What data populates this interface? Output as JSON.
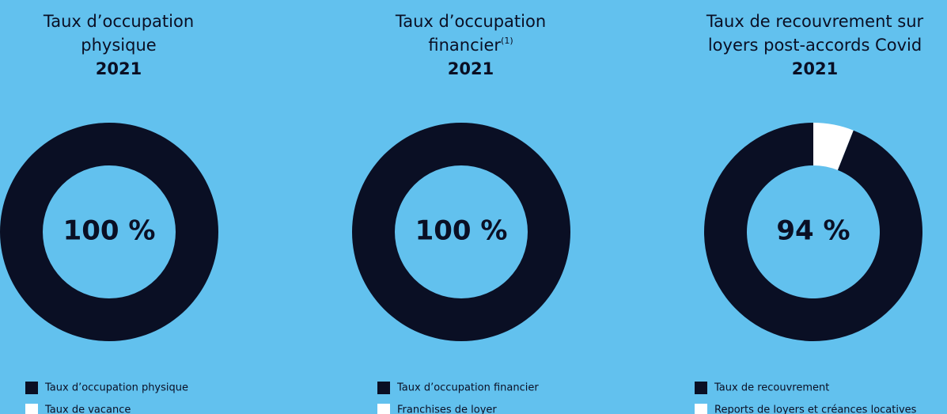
{
  "chart_data": [
    {
      "type": "pie",
      "title": [
        "Taux d’occupation",
        "physique"
      ],
      "year": "2021",
      "categories": [
        "Taux d’occupation physique",
        "Taux de vacance"
      ],
      "values": [
        100,
        0
      ],
      "value_labels": [
        "100 %",
        null
      ],
      "colors": [
        "#0a0f24",
        "#ffffff"
      ]
    },
    {
      "type": "pie",
      "title": [
        "Taux d’occupation",
        "financier"
      ],
      "title_note": "(1)",
      "year": "2021",
      "categories": [
        "Taux d’occupation financier",
        "Franchises de loyer"
      ],
      "values": [
        100,
        0
      ],
      "value_labels": [
        "100 %",
        null
      ],
      "colors": [
        "#0a0f24",
        "#ffffff"
      ]
    },
    {
      "type": "pie",
      "title": [
        "Taux de recouvrement sur",
        "loyers post-accords Covid"
      ],
      "year": "2021",
      "categories": [
        "Taux de recouvrement",
        "Reports de loyers et créances locatives"
      ],
      "values": [
        94,
        6
      ],
      "value_labels": [
        "94 %",
        null
      ],
      "colors": [
        "#0a0f24",
        "#ffffff"
      ]
    }
  ]
}
